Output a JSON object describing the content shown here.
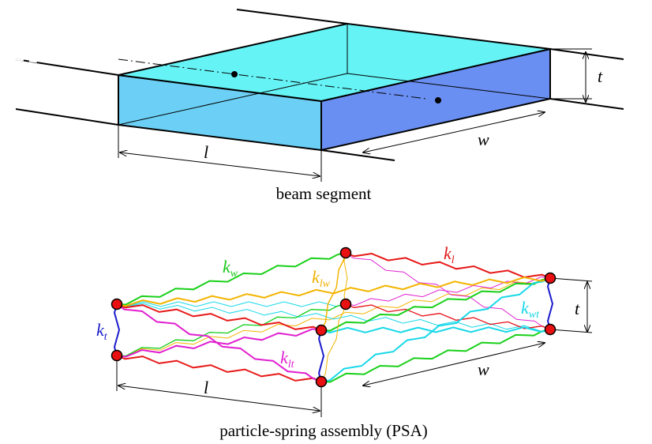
{
  "beam": {
    "dimensions": {
      "thickness": "t",
      "length": "l",
      "width": "w"
    },
    "caption": "beam segment"
  },
  "psa": {
    "springs": [
      {
        "symbol": "k",
        "subscript": "w"
      },
      {
        "symbol": "k",
        "subscript": "l"
      },
      {
        "symbol": "k",
        "subscript": "lw"
      },
      {
        "symbol": "k",
        "subscript": "t"
      },
      {
        "symbol": "k",
        "subscript": "wt"
      },
      {
        "symbol": "k",
        "subscript": "lt"
      }
    ],
    "dimensions": {
      "thickness": "t",
      "length": "l",
      "width": "w"
    },
    "caption": "particle-spring assembly (PSA)"
  }
}
